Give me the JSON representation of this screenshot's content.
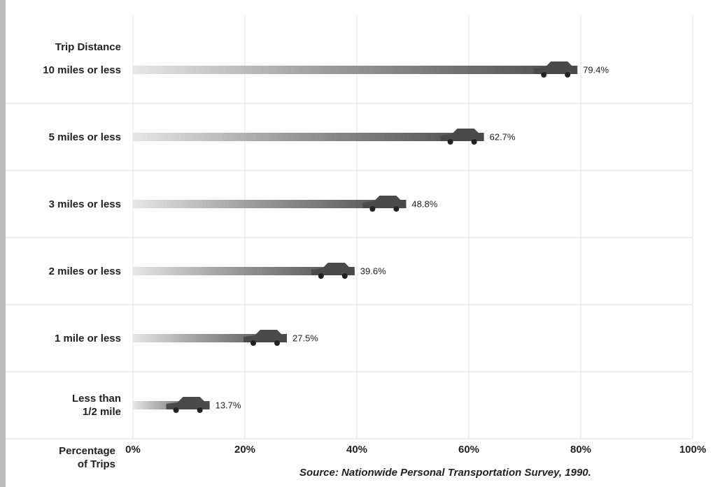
{
  "chart_data": {
    "type": "pictograph_bar",
    "category_header": "Trip Distance",
    "categories": [
      "10 miles or less",
      "5 miles or less",
      "3 miles or less",
      "2 miles or less",
      "1 mile or less",
      "Less than\n1/2 mile"
    ],
    "values": [
      79.4,
      62.7,
      48.8,
      39.6,
      27.5,
      13.7
    ],
    "value_labels": [
      "79.4%",
      "62.7%",
      "48.8%",
      "39.6%",
      "27.5%",
      "13.7%"
    ],
    "color": "#4a4a4a",
    "xlabel": "Percentage\nof Trips",
    "xlim": [
      0,
      100
    ],
    "xticks": [
      {
        "value": 0,
        "label": "0%"
      },
      {
        "value": 20,
        "label": "20%"
      },
      {
        "value": 40,
        "label": "40%"
      },
      {
        "value": 60,
        "label": "60%"
      },
      {
        "value": 80,
        "label": "80%"
      },
      {
        "value": 100,
        "label": "100%"
      }
    ],
    "grid": true,
    "source": "Source: Nationwide Personal Transportation Survey, 1990."
  }
}
